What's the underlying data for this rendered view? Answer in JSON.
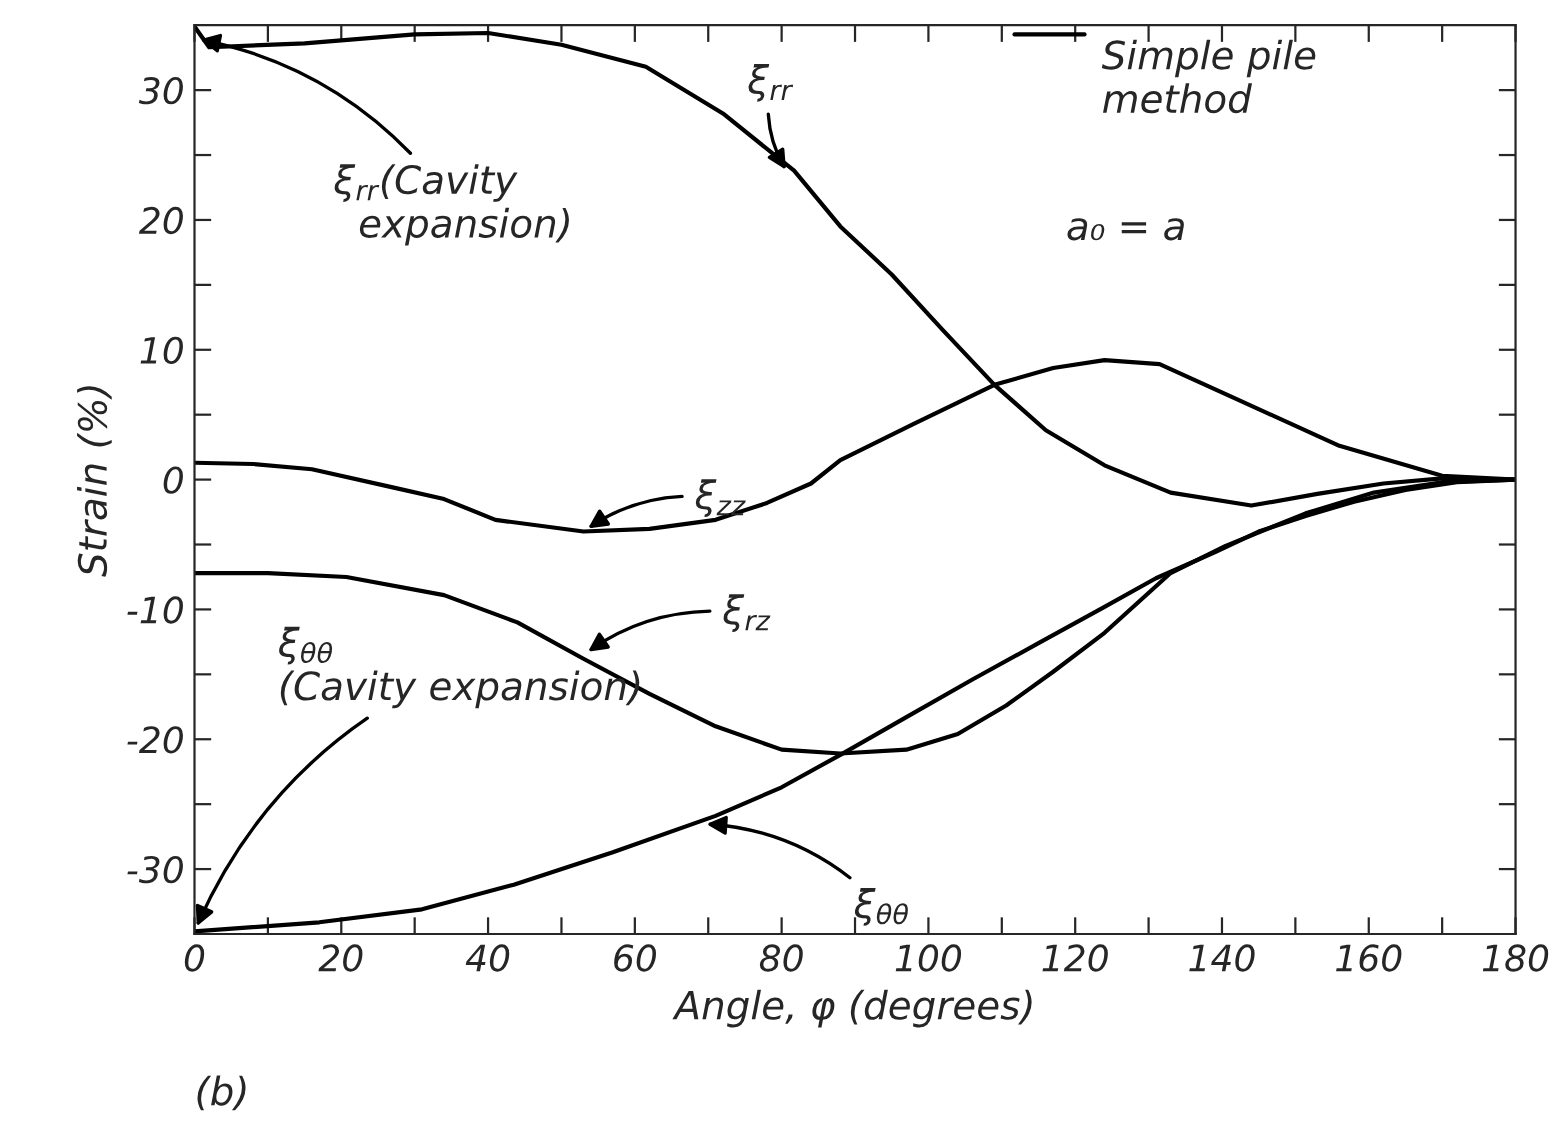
{
  "chart_data": {
    "type": "line",
    "xlabel": "Angle, φ (degrees)",
    "ylabel": "Strain (%)",
    "xlim": [
      0,
      180
    ],
    "ylim": [
      -35,
      35
    ],
    "xticks": [
      0,
      {
        "value": 10,
        "label": null
      },
      20,
      {
        "value": 30,
        "label": null
      },
      40,
      {
        "value": 50,
        "label": null
      },
      60,
      {
        "value": 70,
        "label": null
      },
      80,
      {
        "value": 90,
        "label": null
      },
      100,
      {
        "value": 110,
        "label": null
      },
      120,
      {
        "value": 130,
        "label": null
      },
      140,
      {
        "value": 150,
        "label": null
      },
      160,
      {
        "value": 170,
        "label": null
      },
      180
    ],
    "yticks": [
      {
        "value": -30,
        "label": "-30"
      },
      {
        "value": -25,
        "label": null
      },
      {
        "value": -20,
        "label": "-20"
      },
      {
        "value": -15,
        "label": null
      },
      {
        "value": -10,
        "label": "-10"
      },
      {
        "value": -5,
        "label": null
      },
      0,
      {
        "value": 5,
        "label": null
      },
      10,
      {
        "value": 15,
        "label": null
      },
      20,
      {
        "value": 25,
        "label": null
      },
      30
    ],
    "grid": false,
    "line_style": "solid",
    "series": [
      {
        "color": "#000000",
        "x": [
          0,
          2,
          15,
          30,
          40,
          50,
          61.5,
          72,
          81.7,
          88,
          95,
          102,
          109,
          116,
          124,
          133,
          144,
          153,
          162,
          170,
          180
        ],
        "values": [
          34.9,
          33.3,
          33.6,
          34.3,
          34.4,
          33.5,
          31.8,
          28.2,
          23.8,
          19.5,
          15.8,
          11.5,
          7.3,
          3.8,
          1.1,
          -1.0,
          -2.0,
          -1.1,
          -0.3,
          0.1,
          0
        ]
      },
      {
        "color": "#000000",
        "x": [
          0,
          8,
          16,
          27,
          34,
          41,
          53,
          62,
          71,
          78,
          84,
          88,
          98,
          109,
          117,
          124,
          131.5,
          142,
          156,
          170,
          180
        ],
        "values": [
          1.3,
          1.2,
          0.8,
          -0.6,
          -1.5,
          -3.1,
          -4.0,
          -3.8,
          -3.1,
          -1.8,
          -0.3,
          1.5,
          4.3,
          7.3,
          8.6,
          9.2,
          8.9,
          6.2,
          2.6,
          0.3,
          0
        ]
      },
      {
        "color": "#000000",
        "x": [
          0,
          10,
          20.7,
          34,
          44,
          53,
          62,
          71,
          80,
          88,
          97,
          104,
          110.6,
          117,
          124,
          133,
          140.5,
          151.4,
          160.7,
          170,
          180
        ],
        "values": [
          -7.2,
          -7.2,
          -7.5,
          -8.9,
          -11.0,
          -13.8,
          -16.5,
          -19.0,
          -20.8,
          -21.1,
          -20.8,
          -19.6,
          -17.4,
          -14.8,
          -11.8,
          -7.2,
          -5.1,
          -2.6,
          -1.0,
          -0.2,
          0
        ]
      },
      {
        "color": "#000000",
        "x": [
          0,
          17,
          31,
          43.5,
          57,
          71,
          80,
          88,
          97,
          106,
          115,
          124,
          131,
          139,
          145,
          151.4,
          158,
          165,
          172,
          180
        ],
        "values": [
          -34.8,
          -34.1,
          -33.1,
          -31.2,
          -28.7,
          -25.9,
          -23.7,
          -21.2,
          -18.3,
          -15.4,
          -12.6,
          -9.8,
          -7.6,
          -5.6,
          -4.0,
          -2.8,
          -1.7,
          -0.8,
          -0.2,
          0
        ]
      }
    ],
    "annotations": [
      {
        "text": "ξ$_{rr}$",
        "x": 81,
        "y": 23.5
      },
      {
        "text": "ξ$_{rr}$(Cavity\n  expansion)",
        "x": 0,
        "y": 34
      },
      {
        "text": "ξ$_{zz}$",
        "x": 53,
        "y": -4
      },
      {
        "text": "ξ$_{rz}$",
        "x": 53,
        "y": -13.5
      },
      {
        "text": "ξ$_{θθ}$\n(Cavity expansion)",
        "x": 0,
        "y": -34.8
      },
      {
        "text": "ξ$_{θθ}$",
        "x": 69,
        "y": -26.5
      },
      "Simple pile\nmethod",
      "a₀ = a",
      "(b)"
    ]
  }
}
